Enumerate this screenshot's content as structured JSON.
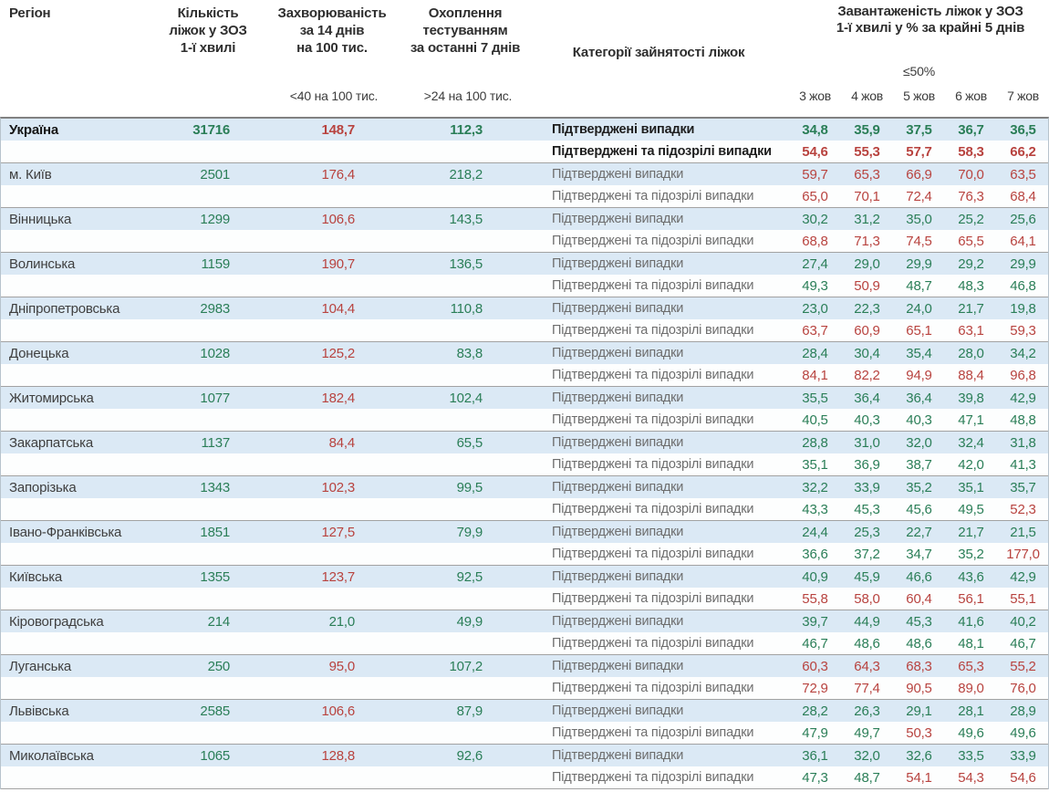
{
  "header": {
    "region": "Регіон",
    "beds": "Кількість\nліжок у ЗОЗ\n1-ї хвилі",
    "incidence": "Захворюваність\nза 14 днів\nна 100 тис.",
    "coverage": "Охоплення\nтестуванням\nза останні 7 днів",
    "category": "Категорії зайнятості ліжок",
    "occupancy": "Завантаженість ліжок у ЗОЗ\n1-ї хвилі у % за крайні 5 днів",
    "incidence_threshold_label": "<40 на 100 тис.",
    "coverage_threshold_label": ">24 на 100 тис.",
    "occupancy_threshold_label": "≤50%",
    "dates": [
      "3 жов",
      "4 жов",
      "5 жов",
      "6 жов",
      "7 жов"
    ]
  },
  "row_labels": {
    "confirmed": "Підтверджені випадки",
    "confirmed_suspected": "Підтверджені та підозрілі випадки"
  },
  "thresholds": {
    "incidence_red_above": 40,
    "coverage_green_above": 24,
    "occupancy_red_above": 50
  },
  "colors": {
    "green": "#2a7e57",
    "red": "#b8433f",
    "row_highlight": "#dbe9f5"
  },
  "regions": [
    {
      "name": "Україна",
      "bold": true,
      "beds": "31716",
      "incidence": "148,7",
      "coverage": "112,3",
      "confirmed": [
        "34,8",
        "35,9",
        "37,5",
        "36,7",
        "36,5"
      ],
      "confirmed_suspected": [
        "54,6",
        "55,3",
        "57,7",
        "58,3",
        "66,2"
      ]
    },
    {
      "name": "м. Київ",
      "bold": false,
      "beds": "2501",
      "incidence": "176,4",
      "coverage": "218,2",
      "confirmed": [
        "59,7",
        "65,3",
        "66,9",
        "70,0",
        "63,5"
      ],
      "confirmed_suspected": [
        "65,0",
        "70,1",
        "72,4",
        "76,3",
        "68,4"
      ]
    },
    {
      "name": "Вінницька",
      "bold": false,
      "beds": "1299",
      "incidence": "106,6",
      "coverage": "143,5",
      "confirmed": [
        "30,2",
        "31,2",
        "35,0",
        "25,2",
        "25,6"
      ],
      "confirmed_suspected": [
        "68,8",
        "71,3",
        "74,5",
        "65,5",
        "64,1"
      ]
    },
    {
      "name": "Волинська",
      "bold": false,
      "beds": "1159",
      "incidence": "190,7",
      "coverage": "136,5",
      "confirmed": [
        "27,4",
        "29,0",
        "29,9",
        "29,2",
        "29,9"
      ],
      "confirmed_suspected": [
        "49,3",
        "50,9",
        "48,7",
        "48,3",
        "46,8"
      ]
    },
    {
      "name": "Дніпропетровська",
      "bold": false,
      "beds": "2983",
      "incidence": "104,4",
      "coverage": "110,8",
      "confirmed": [
        "23,0",
        "22,3",
        "24,0",
        "21,7",
        "19,8"
      ],
      "confirmed_suspected": [
        "63,7",
        "60,9",
        "65,1",
        "63,1",
        "59,3"
      ]
    },
    {
      "name": "Донецька",
      "bold": false,
      "beds": "1028",
      "incidence": "125,2",
      "coverage": "83,8",
      "confirmed": [
        "28,4",
        "30,4",
        "35,4",
        "28,0",
        "34,2"
      ],
      "confirmed_suspected": [
        "84,1",
        "82,2",
        "94,9",
        "88,4",
        "96,8"
      ]
    },
    {
      "name": "Житомирська",
      "bold": false,
      "beds": "1077",
      "incidence": "182,4",
      "coverage": "102,4",
      "confirmed": [
        "35,5",
        "36,4",
        "36,4",
        "39,8",
        "42,9"
      ],
      "confirmed_suspected": [
        "40,5",
        "40,3",
        "40,3",
        "47,1",
        "48,8"
      ]
    },
    {
      "name": "Закарпатська",
      "bold": false,
      "beds": "1137",
      "incidence": "84,4",
      "coverage": "65,5",
      "confirmed": [
        "28,8",
        "31,0",
        "32,0",
        "32,4",
        "31,8"
      ],
      "confirmed_suspected": [
        "35,1",
        "36,9",
        "38,7",
        "42,0",
        "41,3"
      ]
    },
    {
      "name": "Запорізька",
      "bold": false,
      "beds": "1343",
      "incidence": "102,3",
      "coverage": "99,5",
      "confirmed": [
        "32,2",
        "33,9",
        "35,2",
        "35,1",
        "35,7"
      ],
      "confirmed_suspected": [
        "43,3",
        "45,3",
        "45,6",
        "49,5",
        "52,3"
      ]
    },
    {
      "name": "Івано-Франківська",
      "bold": false,
      "beds": "1851",
      "incidence": "127,5",
      "coverage": "79,9",
      "confirmed": [
        "24,4",
        "25,3",
        "22,7",
        "21,7",
        "21,5"
      ],
      "confirmed_suspected": [
        "36,6",
        "37,2",
        "34,7",
        "35,2",
        "177,0"
      ]
    },
    {
      "name": "Київська",
      "bold": false,
      "beds": "1355",
      "incidence": "123,7",
      "coverage": "92,5",
      "confirmed": [
        "40,9",
        "45,9",
        "46,6",
        "43,6",
        "42,9"
      ],
      "confirmed_suspected": [
        "55,8",
        "58,0",
        "60,4",
        "56,1",
        "55,1"
      ]
    },
    {
      "name": "Кіровоградська",
      "bold": false,
      "beds": "214",
      "incidence": "21,0",
      "coverage": "49,9",
      "confirmed": [
        "39,7",
        "44,9",
        "45,3",
        "41,6",
        "40,2"
      ],
      "confirmed_suspected": [
        "46,7",
        "48,6",
        "48,6",
        "48,1",
        "46,7"
      ]
    },
    {
      "name": "Луганська",
      "bold": false,
      "beds": "250",
      "incidence": "95,0",
      "coverage": "107,2",
      "confirmed": [
        "60,3",
        "64,3",
        "68,3",
        "65,3",
        "55,2"
      ],
      "confirmed_suspected": [
        "72,9",
        "77,4",
        "90,5",
        "89,0",
        "76,0"
      ]
    },
    {
      "name": "Львівська",
      "bold": false,
      "beds": "2585",
      "incidence": "106,6",
      "coverage": "87,9",
      "confirmed": [
        "28,2",
        "26,3",
        "29,1",
        "28,1",
        "28,9"
      ],
      "confirmed_suspected": [
        "47,9",
        "49,7",
        "50,3",
        "49,6",
        "49,6"
      ]
    },
    {
      "name": "Миколаївська",
      "bold": false,
      "beds": "1065",
      "incidence": "128,8",
      "coverage": "92,6",
      "confirmed": [
        "36,1",
        "32,0",
        "32,6",
        "33,5",
        "33,9"
      ],
      "confirmed_suspected": [
        "47,3",
        "48,7",
        "54,1",
        "54,3",
        "54,6"
      ]
    }
  ]
}
